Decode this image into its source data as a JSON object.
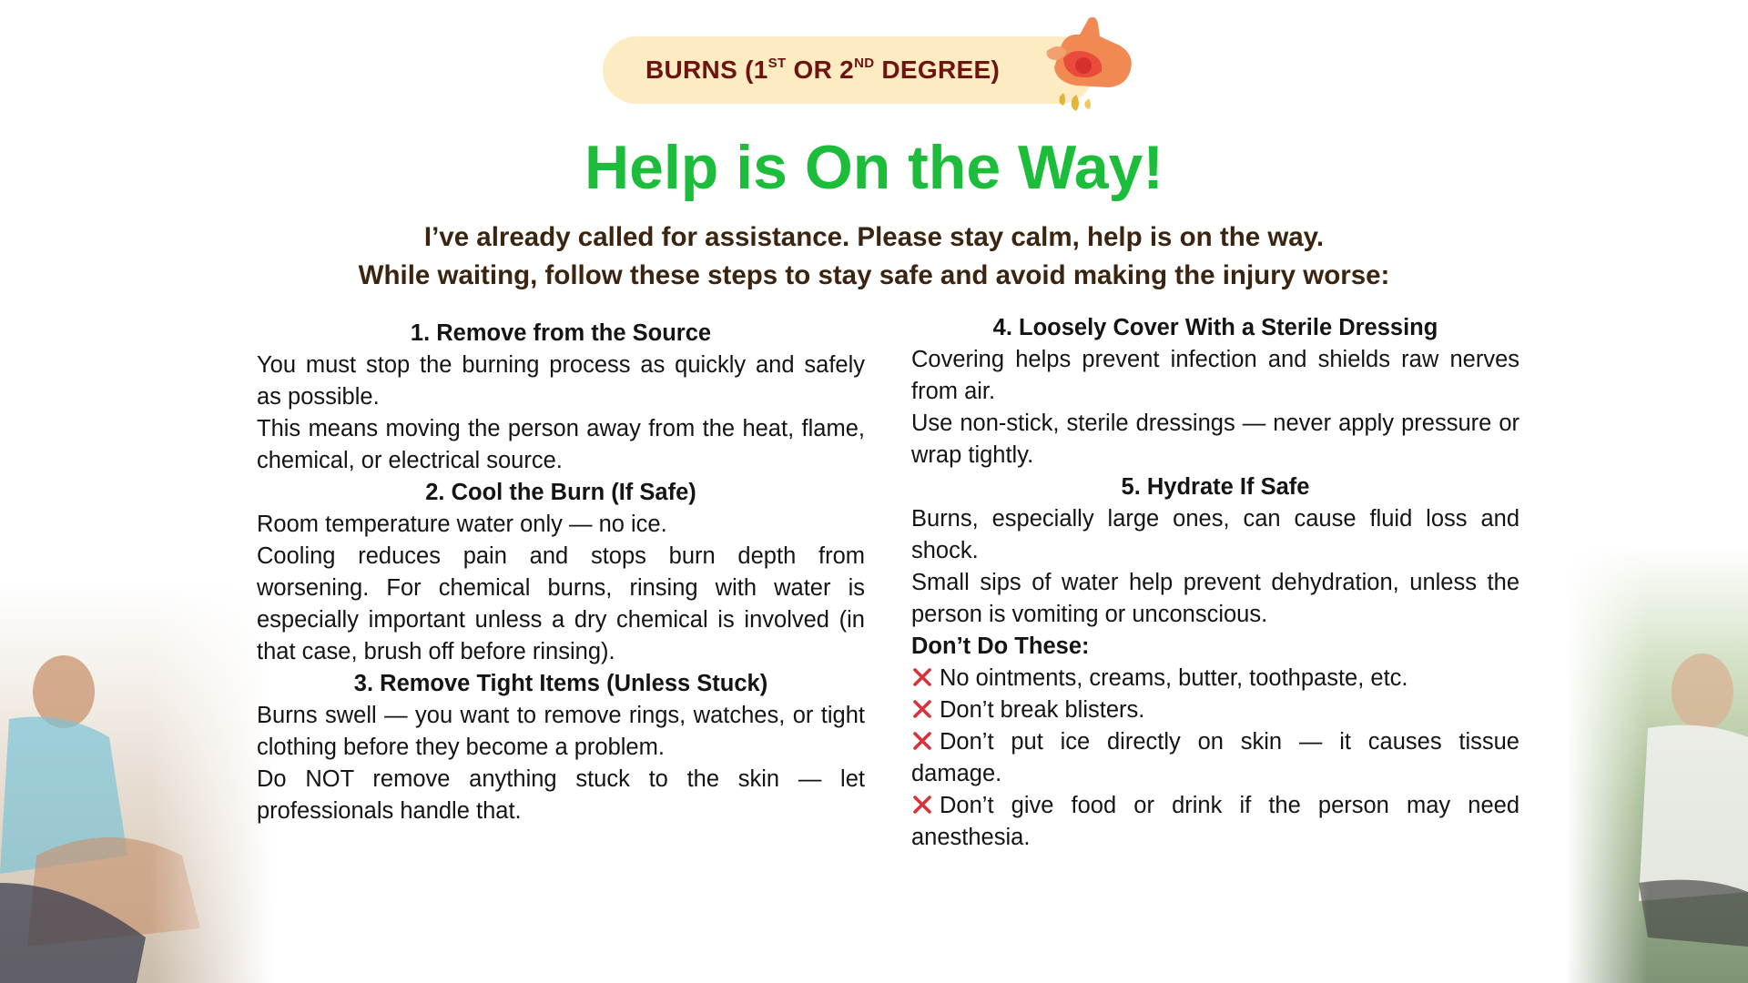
{
  "header": {
    "title_parts": [
      "BURNS (1",
      "ST",
      " OR 2",
      "ND",
      " DEGREE)"
    ],
    "illustration_icon": "burned-hand-icon"
  },
  "main": {
    "heading": "Help is On the Way!",
    "intro_line1": "I’ve already called for assistance. Please stay calm, help is on the way.",
    "intro_line2": "While waiting, follow these steps to stay safe and avoid making the injury worse:"
  },
  "steps": {
    "step1": {
      "title": "1. Remove from the Source",
      "p1": "You must stop the burning process as quickly and safely as possible.",
      "p2": "This means moving the person away from the heat, flame, chemical, or electrical source."
    },
    "step2": {
      "title": "2. Cool the Burn (If Safe)",
      "p1": "Room temperature water only — no ice.",
      "p2": "Cooling reduces pain and stops burn depth from worsening. For chemical burns, rinsing with water is especially important unless a dry chemical is involved (in that case, brush off before rinsing)."
    },
    "step3": {
      "title": "3. Remove Tight Items (Unless Stuck)",
      "p1": "Burns swell — you want to remove rings, watches, or tight clothing before they become a problem.",
      "p2": "Do NOT remove anything stuck to the skin — let professionals handle that."
    },
    "step4": {
      "title": "4. Loosely Cover With a Sterile Dressing",
      "p1": "Covering helps prevent infection and shields raw nerves from air.",
      "p2": "Use non-stick, sterile dressings — never apply pressure or wrap tightly."
    },
    "step5": {
      "title": "5. Hydrate If Safe",
      "p1": "Burns, especially large ones, can cause fluid loss and shock.",
      "p2": "Small sips of water help prevent dehydration, unless the person is vomiting or unconscious."
    }
  },
  "donts": {
    "title": "Don’t Do These:",
    "icon": "red-x-icon",
    "items": [
      "No ointments, creams, butter, toothpaste, etc.",
      "Don’t break blisters.",
      "Don’t put ice directly on skin — it causes tissue damage.",
      "Don’t give food or drink if the person may need anesthesia."
    ]
  },
  "colors": {
    "heading_green": "#1bbd3a",
    "intro_brown": "#3b2410",
    "pill_background": "#fdebc1",
    "pill_text": "#6e1212",
    "x_red": "#d8333a"
  }
}
